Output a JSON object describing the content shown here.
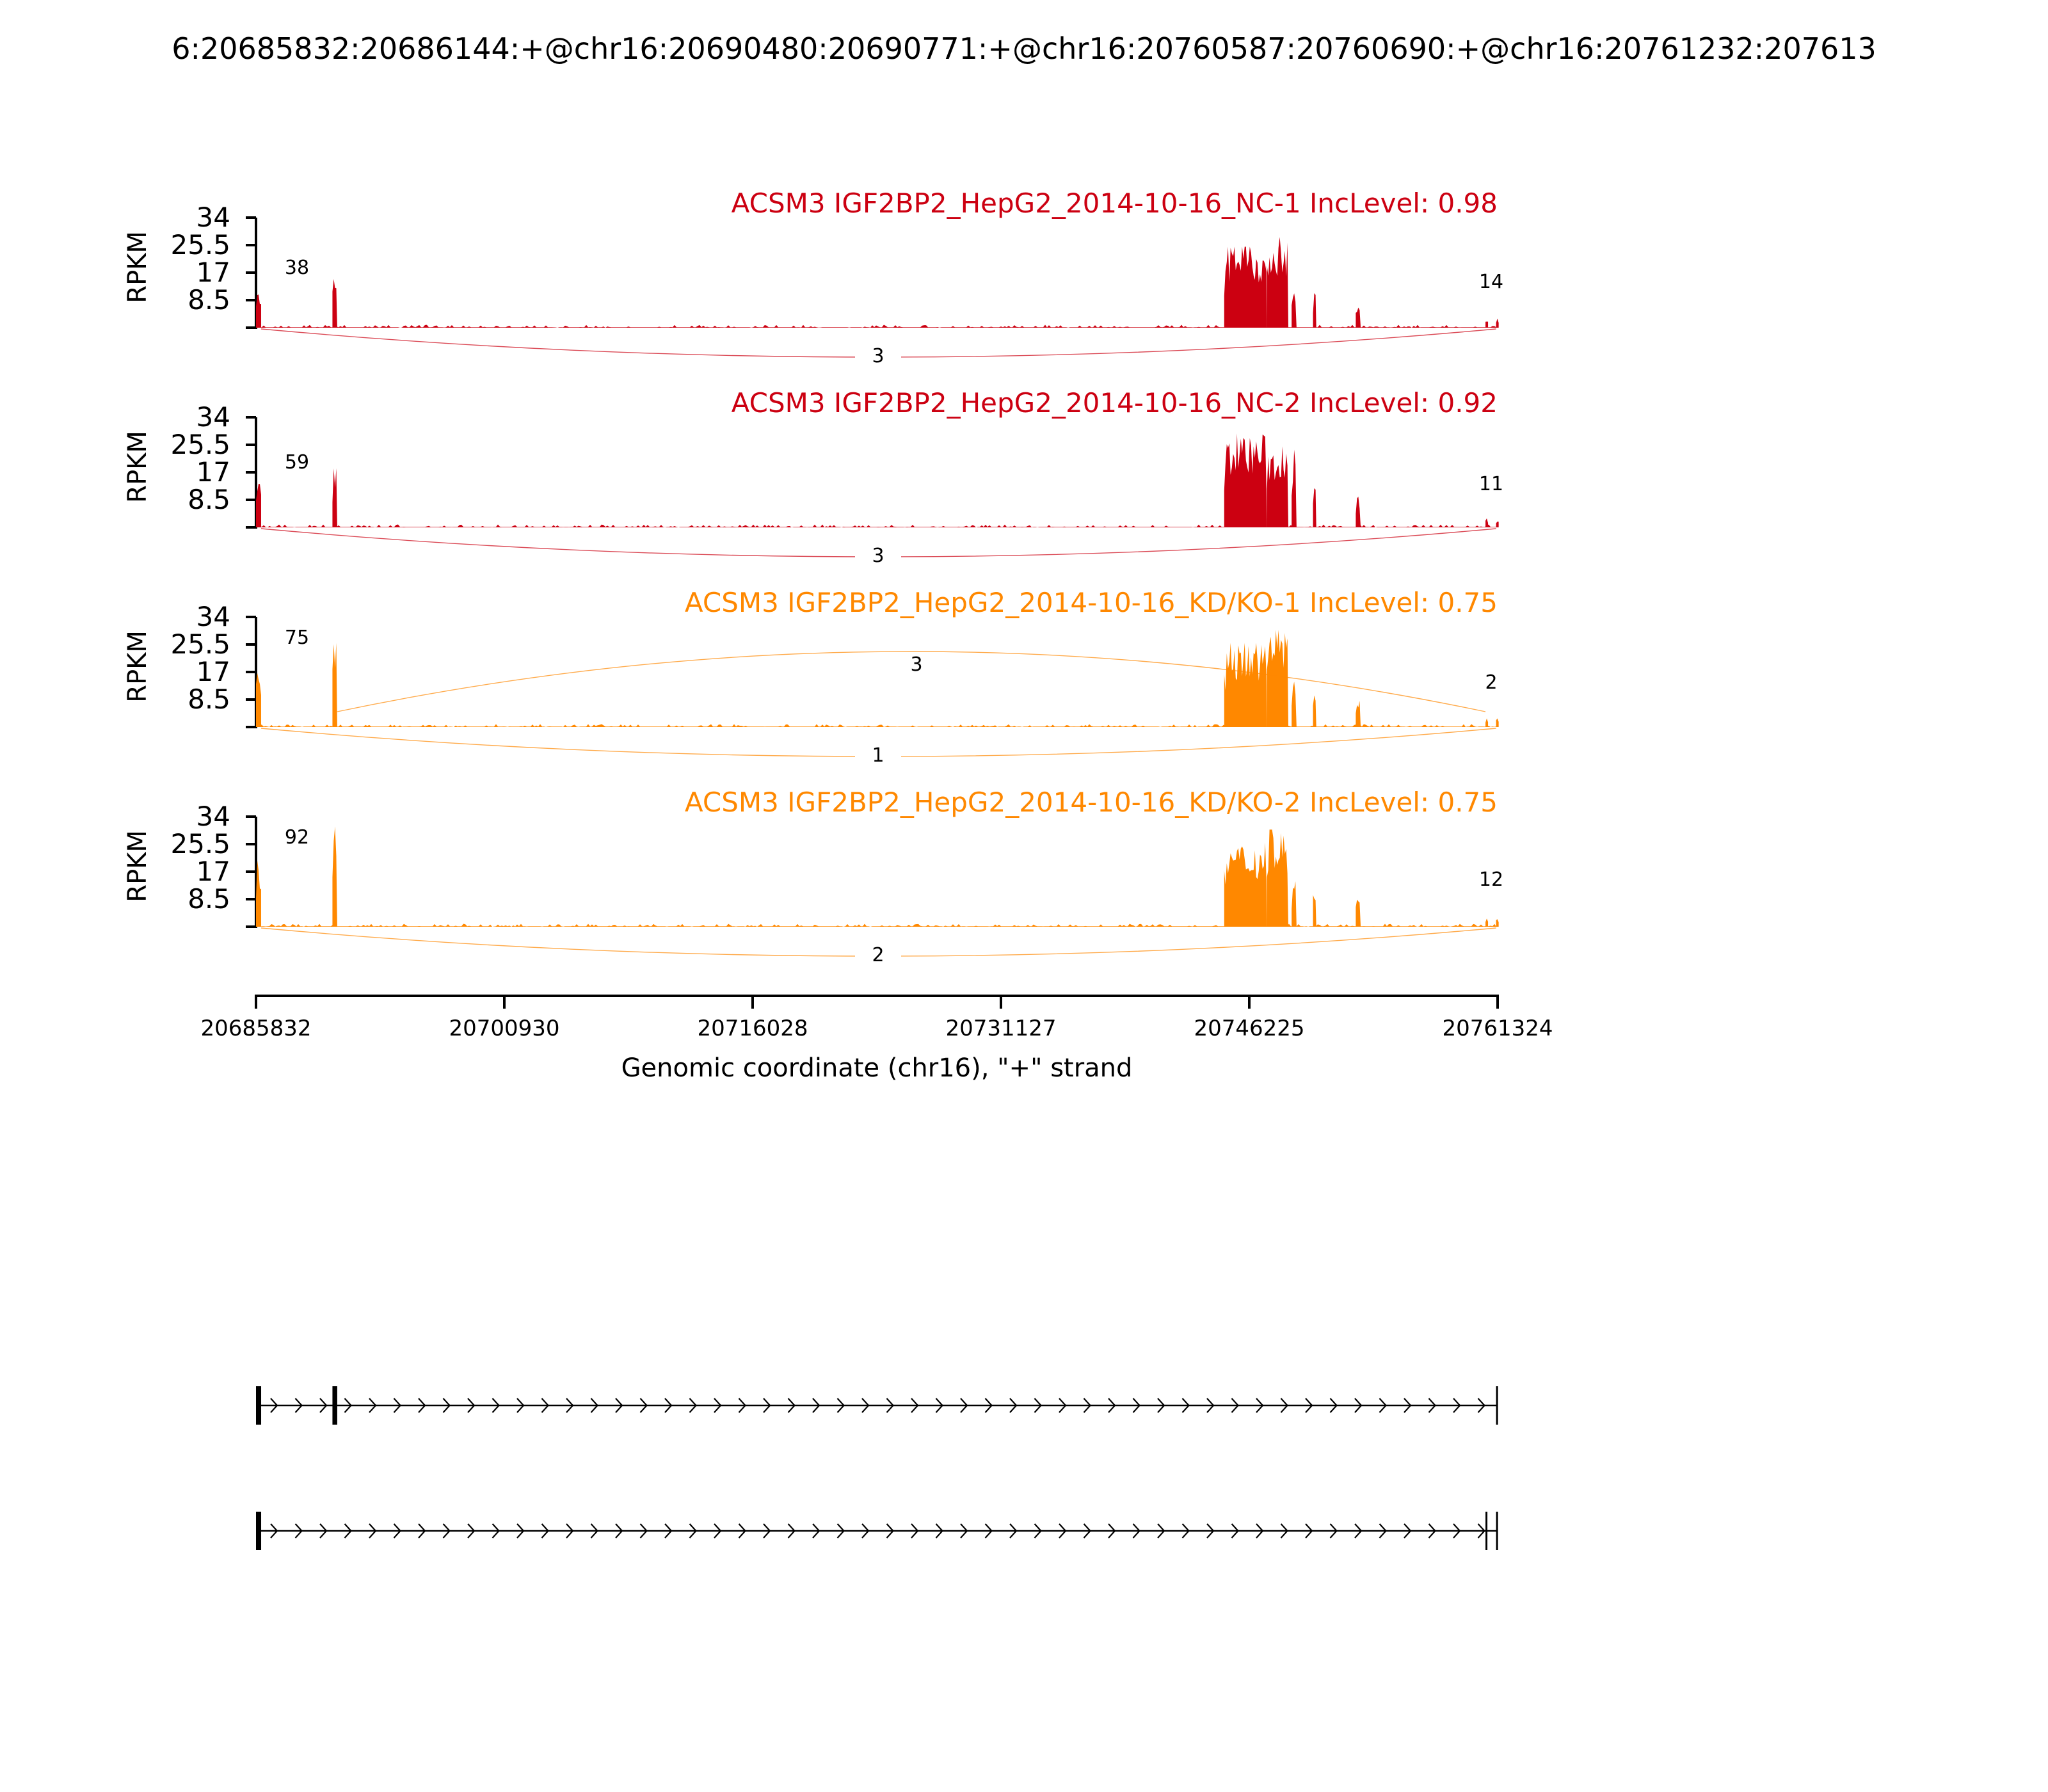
{
  "title": "6:20685832:20686144:+@chr16:20690480:20690771:+@chr16:20760587:20760690:+@chr16:20761232:207613",
  "chart_data": {
    "type": "area",
    "xlabel": "Genomic coordinate (chr16), \"+\" strand",
    "ylabel": "RPKM",
    "ylim": [
      0,
      34
    ],
    "xlim": [
      20685832,
      20761324
    ],
    "yticks": [
      8.5,
      17,
      25.5,
      34
    ],
    "ytick_labels": [
      "8.5",
      "17",
      "25.5",
      "34"
    ],
    "xticks": [
      20685832,
      20700930,
      20716028,
      20731127,
      20746225,
      20761324
    ],
    "xtick_labels": [
      "20685832",
      "20700930",
      "20716028",
      "20731127",
      "20746225",
      "20761324"
    ],
    "tracks": [
      {
        "label": "ACSM3 IGF2BP2_HepG2_2014-10-16_NC-1 IncLevel: 0.98",
        "color": "#cc0011",
        "left_count": "38",
        "right_count": "14",
        "junctions": [
          {
            "from": 20686144,
            "to": 20761232,
            "count": "3",
            "side": "below"
          }
        ],
        "coverage": [
          {
            "start": 20685832,
            "end": 20686144,
            "peak": 13
          },
          {
            "start": 20690480,
            "end": 20690771,
            "peak": 17
          },
          {
            "start": 20744700,
            "end": 20747300,
            "peak": 25
          },
          {
            "start": 20747300,
            "end": 20748600,
            "peak": 28
          },
          {
            "start": 20748800,
            "end": 20749100,
            "peak": 12
          },
          {
            "start": 20750100,
            "end": 20750300,
            "peak": 11
          },
          {
            "start": 20752700,
            "end": 20753000,
            "peak": 7
          },
          {
            "start": 20760587,
            "end": 20760690,
            "peak": 3
          },
          {
            "start": 20761232,
            "end": 20761324,
            "peak": 3
          }
        ]
      },
      {
        "label": "ACSM3 IGF2BP2_HepG2_2014-10-16_NC-2 IncLevel: 0.92",
        "color": "#cc0011",
        "left_count": "59",
        "right_count": "11",
        "junctions": [
          {
            "from": 20686144,
            "to": 20761232,
            "count": "3",
            "side": "below"
          }
        ],
        "coverage": [
          {
            "start": 20685832,
            "end": 20686144,
            "peak": 15
          },
          {
            "start": 20690480,
            "end": 20690771,
            "peak": 19
          },
          {
            "start": 20744700,
            "end": 20747300,
            "peak": 29
          },
          {
            "start": 20747300,
            "end": 20748600,
            "peak": 25
          },
          {
            "start": 20748800,
            "end": 20749100,
            "peak": 24
          },
          {
            "start": 20750100,
            "end": 20750300,
            "peak": 16
          },
          {
            "start": 20752700,
            "end": 20753000,
            "peak": 10
          },
          {
            "start": 20760587,
            "end": 20760690,
            "peak": 3
          },
          {
            "start": 20761232,
            "end": 20761324,
            "peak": 3
          }
        ]
      },
      {
        "label": "ACSM3 IGF2BP2_HepG2_2014-10-16_KD/KO-1 IncLevel: 0.75",
        "color": "#ff8800",
        "left_count": "75",
        "right_count": "2",
        "junctions": [
          {
            "from": 20690771,
            "to": 20760587,
            "count": "3",
            "side": "above"
          },
          {
            "from": 20686144,
            "to": 20761232,
            "count": "1",
            "side": "below"
          }
        ],
        "coverage": [
          {
            "start": 20685832,
            "end": 20686144,
            "peak": 21
          },
          {
            "start": 20690480,
            "end": 20690771,
            "peak": 26
          },
          {
            "start": 20744700,
            "end": 20747300,
            "peak": 26
          },
          {
            "start": 20747300,
            "end": 20748600,
            "peak": 30
          },
          {
            "start": 20748800,
            "end": 20749100,
            "peak": 14
          },
          {
            "start": 20750100,
            "end": 20750300,
            "peak": 12
          },
          {
            "start": 20752700,
            "end": 20753000,
            "peak": 9
          },
          {
            "start": 20760587,
            "end": 20760690,
            "peak": 3
          },
          {
            "start": 20761232,
            "end": 20761324,
            "peak": 3
          }
        ]
      },
      {
        "label": "ACSM3 IGF2BP2_HepG2_2014-10-16_KD/KO-2 IncLevel: 0.75",
        "color": "#ff8800",
        "left_count": "92",
        "right_count": "12",
        "junctions": [
          {
            "from": 20686144,
            "to": 20761232,
            "count": "2",
            "side": "below"
          }
        ],
        "coverage": [
          {
            "start": 20685832,
            "end": 20686144,
            "peak": 21
          },
          {
            "start": 20690480,
            "end": 20690771,
            "peak": 31
          },
          {
            "start": 20744700,
            "end": 20747300,
            "peak": 26
          },
          {
            "start": 20747300,
            "end": 20748600,
            "peak": 30
          },
          {
            "start": 20748800,
            "end": 20749100,
            "peak": 14
          },
          {
            "start": 20750100,
            "end": 20750300,
            "peak": 14
          },
          {
            "start": 20752700,
            "end": 20753000,
            "peak": 13
          },
          {
            "start": 20760587,
            "end": 20760690,
            "peak": 3
          },
          {
            "start": 20761232,
            "end": 20761324,
            "peak": 3
          }
        ]
      }
    ],
    "isoforms": [
      {
        "exons": [
          [
            20685832,
            20686144
          ],
          [
            20690480,
            20690771
          ],
          [
            20761232,
            20761324
          ]
        ]
      },
      {
        "exons": [
          [
            20685832,
            20686144
          ],
          [
            20760587,
            20760690
          ],
          [
            20761232,
            20761324
          ]
        ]
      }
    ]
  }
}
